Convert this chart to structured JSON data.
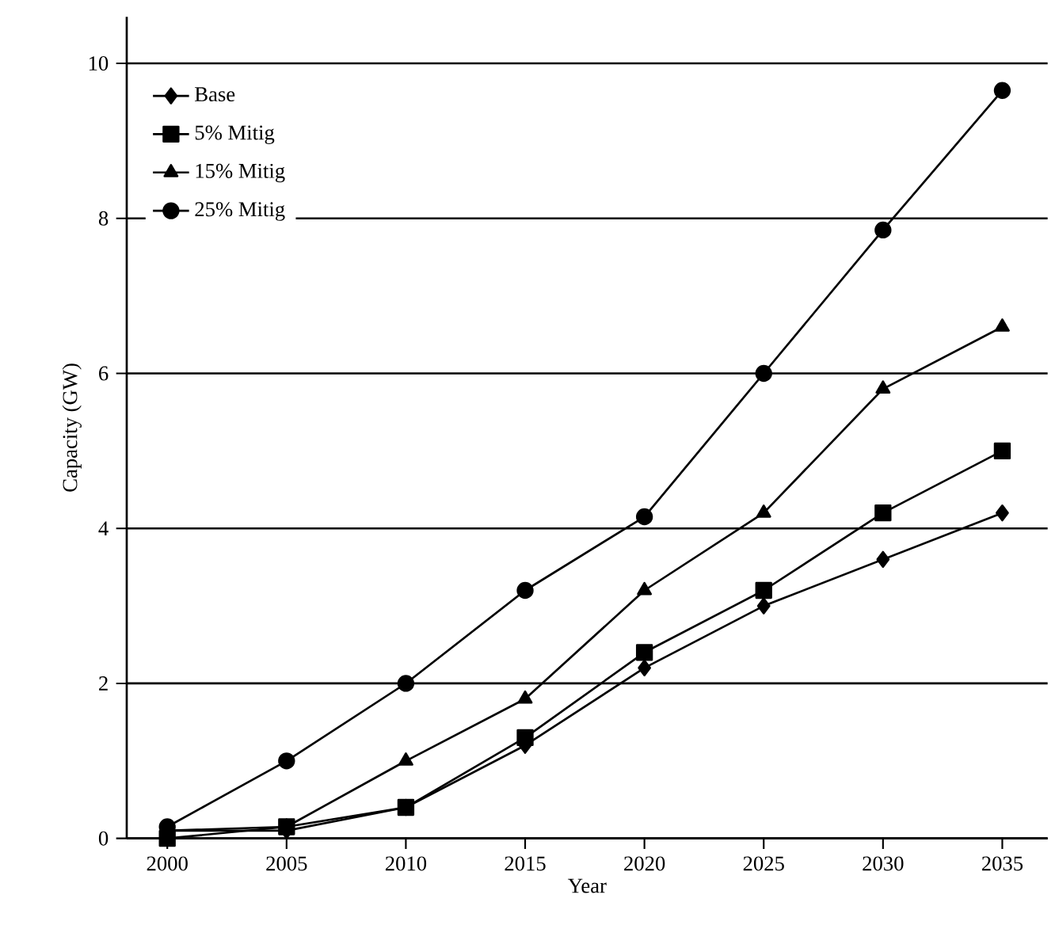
{
  "chart_data": {
    "type": "line",
    "xlabel": "Year",
    "ylabel": "Capacity (GW)",
    "x": [
      2000,
      2005,
      2010,
      2015,
      2020,
      2025,
      2030,
      2035
    ],
    "series": [
      {
        "name": "Base",
        "color": "#000000",
        "marker": "diamond",
        "values": [
          0.1,
          0.1,
          0.4,
          1.2,
          2.2,
          3.0,
          3.6,
          4.2
        ]
      },
      {
        "name": "5% Mitig",
        "color": "#000000",
        "marker": "square",
        "values": [
          0.0,
          0.15,
          0.4,
          1.3,
          2.4,
          3.2,
          4.2,
          5.0
        ]
      },
      {
        "name": "15% Mitig",
        "color": "#000000",
        "marker": "triangle",
        "values": [
          0.1,
          0.15,
          1.0,
          1.8,
          3.2,
          4.2,
          5.8,
          6.6
        ]
      },
      {
        "name": "25% Mitig",
        "color": "#000000",
        "marker": "circle",
        "values": [
          0.15,
          1.0,
          2.0,
          3.2,
          4.15,
          6.0,
          7.85,
          9.65
        ]
      }
    ],
    "xlim": [
      1998.3,
      2036.9
    ],
    "ylim": [
      0,
      10.6
    ],
    "xticks": [
      2000,
      2005,
      2010,
      2015,
      2020,
      2025,
      2030,
      2035
    ],
    "yticks": [
      0,
      2,
      4,
      6,
      8,
      10
    ],
    "grid": "y",
    "legend": "top left",
    "line_style": "solid"
  }
}
